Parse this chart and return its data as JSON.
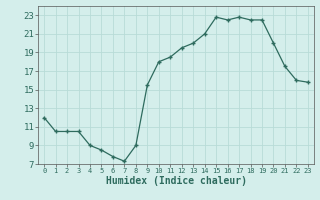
{
  "x": [
    0,
    1,
    2,
    3,
    4,
    5,
    6,
    7,
    8,
    9,
    10,
    11,
    12,
    13,
    14,
    15,
    16,
    17,
    18,
    19,
    20,
    21,
    22,
    23
  ],
  "y": [
    12,
    10.5,
    10.5,
    10.5,
    9,
    8.5,
    7.8,
    7.3,
    9,
    15.5,
    18,
    18.5,
    19.5,
    20,
    21,
    22.8,
    22.5,
    22.8,
    22.5,
    22.5,
    20,
    17.5,
    16,
    15.8
  ],
  "xlabel": "Humidex (Indice chaleur)",
  "ylim": [
    7,
    24
  ],
  "xlim": [
    -0.5,
    23.5
  ],
  "yticks": [
    7,
    9,
    11,
    13,
    15,
    17,
    19,
    21,
    23
  ],
  "xticks": [
    0,
    1,
    2,
    3,
    4,
    5,
    6,
    7,
    8,
    9,
    10,
    11,
    12,
    13,
    14,
    15,
    16,
    17,
    18,
    19,
    20,
    21,
    22,
    23
  ],
  "line_color": "#2e6b5e",
  "marker_color": "#2e6b5e",
  "bg_color": "#d4eeeb",
  "grid_color": "#b8dbd7",
  "xlabel_fontsize": 7,
  "tick_fontsize": 6.5
}
